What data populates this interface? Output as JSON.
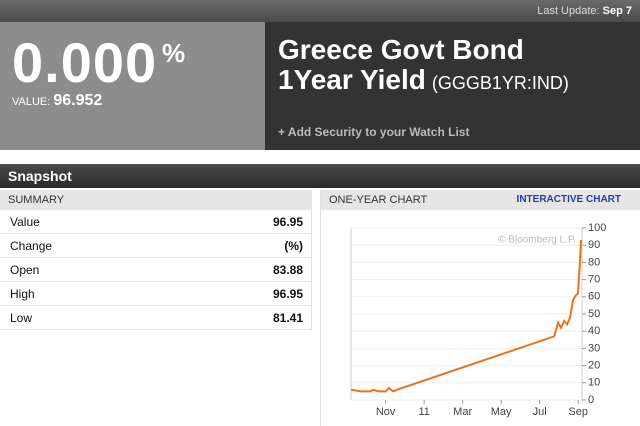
{
  "header": {
    "last_update_label": "Last Update:",
    "last_update": "Sep 7"
  },
  "quote": {
    "yield": "0.000",
    "unit": "%",
    "value_label": "VALUE:",
    "value": "96.952"
  },
  "title": {
    "line1": "Greece Govt Bond",
    "line2": "1Year Yield",
    "ticker": "(GGGB1YR:IND)",
    "watch": "+ Add Security to your Watch List"
  },
  "snapshot": {
    "title": "Snapshot"
  },
  "summary": {
    "header": "SUMMARY",
    "rows": [
      [
        "Value",
        "96.95"
      ],
      [
        "Change",
        "(%)"
      ],
      [
        "Open",
        "83.88"
      ],
      [
        "High",
        "96.95"
      ],
      [
        "Low",
        "81.41"
      ]
    ]
  },
  "chart_panel": {
    "header": "ONE-YEAR CHART",
    "link": "INTERACTIVE CHART",
    "watermark": "© Bloomberg L.P."
  },
  "chart_data": {
    "type": "line",
    "color": "#e8731c",
    "grid": true,
    "x": [
      0.2,
      0.72,
      1.24,
      1.34,
      1.65,
      2.02,
      2.17,
      2.38,
      2.59,
      10.75,
      10.96,
      11.11,
      11.27,
      11.43,
      11.58,
      11.73,
      11.89,
      11.99,
      12.1,
      12.15
    ],
    "values": [
      6,
      5,
      5,
      6,
      5,
      5,
      7,
      5,
      6,
      37,
      45,
      42,
      46,
      44,
      48,
      58,
      61,
      62,
      82,
      93
    ],
    "xlim": [
      0.2,
      12.2
    ],
    "xticks": [
      {
        "value": 2,
        "label": "Nov"
      },
      {
        "value": 4,
        "label": "11"
      },
      {
        "value": 6,
        "label": "Mar"
      },
      {
        "value": 8,
        "label": "May"
      },
      {
        "value": 10,
        "label": "Jul"
      },
      {
        "value": 12,
        "label": "Sep"
      }
    ],
    "ylim": [
      0,
      100
    ],
    "yticks": [
      0,
      10,
      20,
      30,
      40,
      50,
      60,
      70,
      80,
      90,
      100
    ]
  }
}
